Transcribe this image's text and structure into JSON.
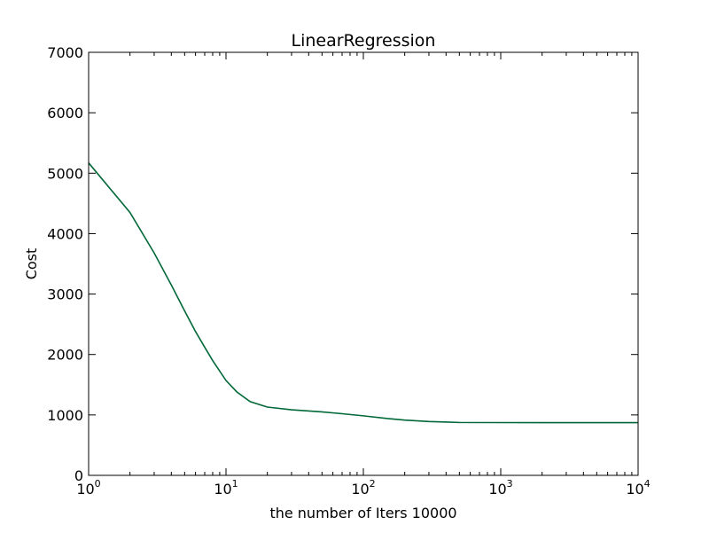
{
  "chart_data": {
    "type": "line",
    "title": "LinearRegression",
    "xlabel": "the number of Iters 10000",
    "ylabel": "Cost",
    "xscale": "log",
    "xlim": [
      1,
      10000
    ],
    "ylim": [
      0,
      7000
    ],
    "grid": false,
    "legend": "none",
    "x_ticks": [
      {
        "base": "10",
        "exp": "0",
        "value": 1
      },
      {
        "base": "10",
        "exp": "1",
        "value": 10
      },
      {
        "base": "10",
        "exp": "2",
        "value": 100
      },
      {
        "base": "10",
        "exp": "3",
        "value": 1000
      },
      {
        "base": "10",
        "exp": "4",
        "value": 10000
      }
    ],
    "y_ticks": [
      "0",
      "1000",
      "2000",
      "3000",
      "4000",
      "5000",
      "6000",
      "7000"
    ],
    "series": [
      {
        "color": "#006838",
        "x": [
          1,
          2,
          3,
          4,
          5,
          6,
          7,
          8,
          10,
          12,
          15,
          20,
          30,
          50,
          70,
          100,
          150,
          200,
          300,
          500,
          1000,
          2000,
          5000,
          10000
        ],
        "y": [
          5170,
          4350,
          3680,
          3150,
          2720,
          2380,
          2120,
          1900,
          1570,
          1380,
          1220,
          1130,
          1085,
          1050,
          1020,
          985,
          940,
          915,
          890,
          875,
          873,
          872,
          872,
          872
        ]
      }
    ]
  }
}
